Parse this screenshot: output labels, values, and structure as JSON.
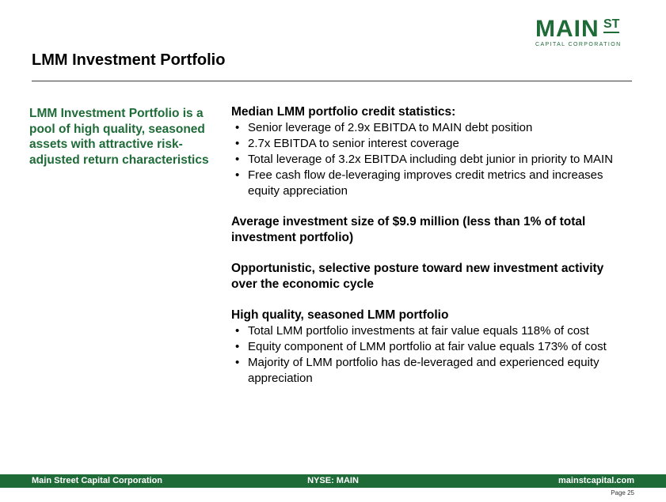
{
  "logo": {
    "main": "MAIN",
    "superscript": "ST",
    "subtitle": "CAPITAL CORPORATION",
    "color": "#1f6b38"
  },
  "header": {
    "title": "LMM Investment Portfolio"
  },
  "sidebar": {
    "text": "LMM Investment Portfolio is a pool of high quality, seasoned assets with attractive risk-adjusted return characteristics"
  },
  "sections": [
    {
      "heading": "Median LMM portfolio credit statistics:",
      "bullets": [
        "Senior leverage of 2.9x EBITDA to MAIN debt position",
        "2.7x EBITDA to senior interest coverage",
        "Total leverage of 3.2x EBITDA including debt junior in priority to MAIN",
        "Free cash flow de-leveraging improves credit metrics and increases equity appreciation"
      ]
    },
    {
      "heading": "Average investment size of $9.9 million (less than 1% of total investment portfolio)",
      "bullets": []
    },
    {
      "heading": "Opportunistic, selective posture toward new investment activity over the economic cycle",
      "bullets": []
    },
    {
      "heading": "High quality, seasoned LMM portfolio",
      "bullets": [
        "Total LMM portfolio investments at fair value equals 118% of cost",
        "Equity component of LMM portfolio at fair value equals 173% of cost",
        "Majority of LMM portfolio has de-leveraged and experienced equity appreciation"
      ]
    }
  ],
  "footer": {
    "left": "Main Street Capital Corporation",
    "center": "NYSE: MAIN",
    "right": "mainstcapital.com",
    "page": "Page  25"
  }
}
